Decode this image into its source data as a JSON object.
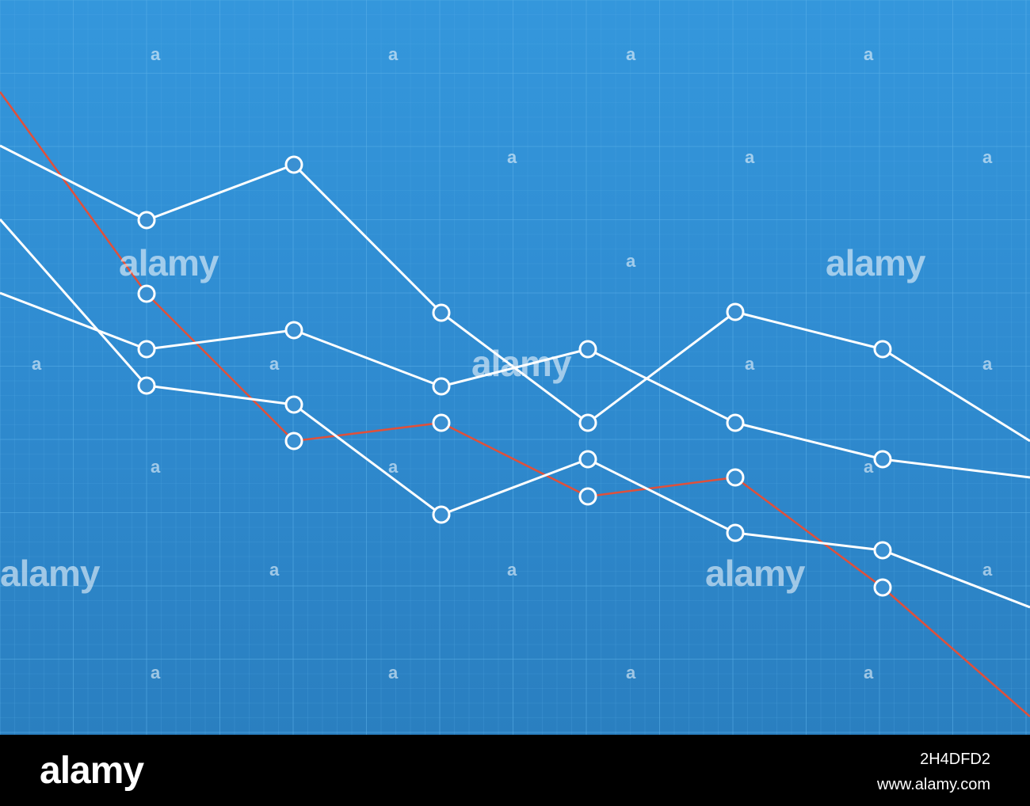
{
  "chart_data": {
    "type": "line",
    "title": "",
    "xlabel": "",
    "ylabel": "",
    "grid": true,
    "colors": {
      "background_top": "#3497dc",
      "background_bottom": "#2a7fc0",
      "grid": "#5aaee8",
      "white_series": "#ffffff",
      "red_series": "#e0503a"
    },
    "x": [
      0,
      1,
      2,
      3,
      4,
      5,
      6,
      7
    ],
    "series": [
      {
        "color": "white",
        "markers": true,
        "values": [
          184,
          278,
          208,
          395,
          534,
          394,
          441,
          557
        ]
      },
      {
        "color": "white",
        "markers": true,
        "values": [
          370,
          441,
          417,
          488,
          441,
          534,
          580,
          603
        ]
      },
      {
        "color": "white",
        "markers": true,
        "values": [
          277,
          487,
          511,
          650,
          580,
          673,
          695,
          767
        ]
      },
      {
        "color": "red",
        "markers": true,
        "values": [
          116,
          371,
          557,
          534,
          627,
          603,
          742,
          905
        ]
      }
    ]
  },
  "watermarks": {
    "big": "alamy",
    "small": "a"
  },
  "footer": {
    "logo": "alamy",
    "image_id": "2H4DFD2",
    "url": "www.alamy.com"
  }
}
